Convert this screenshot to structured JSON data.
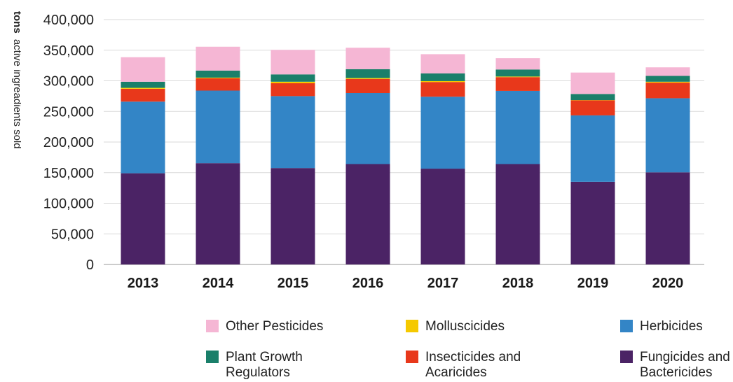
{
  "chart_data": {
    "type": "bar",
    "stacked": true,
    "ylabel_bold": "tons",
    "ylabel_rest": "active ingreadients sold",
    "ylim": [
      0,
      400000
    ],
    "yticks": [
      "0",
      "50,000",
      "100,000",
      "150,000",
      "200,000",
      "250,000",
      "300,000",
      "350,000",
      "400,000"
    ],
    "ytick_values": [
      0,
      50000,
      100000,
      150000,
      200000,
      250000,
      300000,
      350000,
      400000
    ],
    "grid": true,
    "legend_position": "bottom",
    "categories": [
      "2013",
      "2014",
      "2015",
      "2016",
      "2017",
      "2018",
      "2019",
      "2020"
    ],
    "series": [
      {
        "name": "Fungicides and Bactericides",
        "color": "#4b2365",
        "values": [
          149000,
          165500,
          157500,
          164000,
          156500,
          164000,
          135000,
          150500
        ]
      },
      {
        "name": "Herbicides",
        "color": "#3385c6",
        "values": [
          117000,
          118500,
          117500,
          116000,
          117500,
          119500,
          108500,
          121000
        ]
      },
      {
        "name": "Insecticides and Acaricides",
        "color": "#e8381b",
        "values": [
          21000,
          20000,
          21000,
          23000,
          24000,
          22500,
          24500,
          25500
        ]
      },
      {
        "name": "Molluscicides",
        "color": "#f5c900",
        "values": [
          1500,
          1200,
          2500,
          1500,
          1500,
          1000,
          500,
          1500
        ]
      },
      {
        "name": "Plant Growth Regulators",
        "color": "#1a7f6a",
        "values": [
          10000,
          11500,
          12000,
          14500,
          12500,
          11500,
          10000,
          9500
        ]
      },
      {
        "name": "Other Pesticides",
        "color": "#f5b6d4",
        "values": [
          40000,
          39000,
          40000,
          35000,
          31500,
          18500,
          35000,
          14000
        ]
      }
    ]
  },
  "legend": {
    "items": [
      {
        "label_lines": [
          "Other Pesticides"
        ],
        "color": "#f5b6d4"
      },
      {
        "label_lines": [
          "Molluscicides"
        ],
        "color": "#f5c900"
      },
      {
        "label_lines": [
          "Herbicides"
        ],
        "color": "#3385c6"
      },
      {
        "label_lines": [
          "Plant Growth",
          "Regulators"
        ],
        "color": "#1a7f6a"
      },
      {
        "label_lines": [
          "Insecticides and",
          "Acaricides"
        ],
        "color": "#e8381b"
      },
      {
        "label_lines": [
          "Fungicides and",
          "Bactericides"
        ],
        "color": "#4b2365"
      }
    ]
  }
}
